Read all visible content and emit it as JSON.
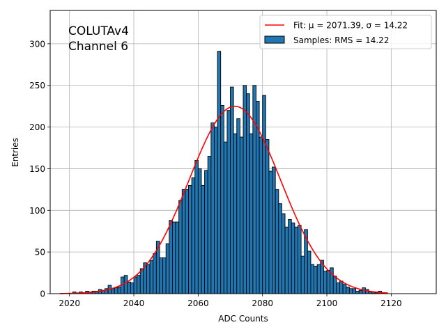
{
  "chart_data": {
    "type": "bar",
    "annotation_lines": [
      "COLUTAv4",
      "Channel 6"
    ],
    "xlabel": "ADC Counts",
    "ylabel": "Entries",
    "xlim": [
      2014,
      2134
    ],
    "ylim": [
      0,
      340
    ],
    "xticks": [
      2020,
      2040,
      2060,
      2080,
      2100,
      2120
    ],
    "yticks": [
      0,
      50,
      100,
      150,
      200,
      250,
      300
    ],
    "grid": true,
    "legend_position": "top-right",
    "bin_width": 1,
    "histogram": {
      "name": "Samples: RMS = 14.22",
      "color": "#1f77b4",
      "edgecolor": "#000000",
      "bin_starts": [
        2021,
        2022,
        2023,
        2024,
        2025,
        2026,
        2027,
        2028,
        2029,
        2030,
        2031,
        2032,
        2033,
        2034,
        2035,
        2036,
        2037,
        2038,
        2039,
        2040,
        2041,
        2042,
        2043,
        2044,
        2045,
        2046,
        2047,
        2048,
        2049,
        2050,
        2051,
        2052,
        2053,
        2054,
        2055,
        2056,
        2057,
        2058,
        2059,
        2060,
        2061,
        2062,
        2063,
        2064,
        2065,
        2066,
        2067,
        2068,
        2069,
        2070,
        2071,
        2072,
        2073,
        2074,
        2075,
        2076,
        2077,
        2078,
        2079,
        2080,
        2081,
        2082,
        2083,
        2084,
        2085,
        2086,
        2087,
        2088,
        2089,
        2090,
        2091,
        2092,
        2093,
        2094,
        2095,
        2096,
        2097,
        2098,
        2099,
        2100,
        2101,
        2102,
        2103,
        2104,
        2105,
        2106,
        2107,
        2108,
        2109,
        2110,
        2111,
        2112,
        2113,
        2114,
        2115,
        2116,
        2117
      ],
      "counts": [
        2,
        1,
        2,
        1,
        3,
        2,
        3,
        3,
        5,
        4,
        6,
        10,
        6,
        7,
        8,
        20,
        22,
        14,
        13,
        20,
        22,
        30,
        37,
        35,
        40,
        48,
        63,
        43,
        43,
        60,
        88,
        86,
        86,
        112,
        125,
        125,
        130,
        139,
        160,
        150,
        130,
        148,
        165,
        205,
        200,
        291,
        226,
        182,
        220,
        248,
        192,
        210,
        188,
        250,
        240,
        192,
        250,
        231,
        188,
        238,
        185,
        147,
        152,
        125,
        108,
        96,
        80,
        89,
        85,
        80,
        82,
        45,
        77,
        51,
        35,
        33,
        35,
        40,
        27,
        28,
        31,
        21,
        13,
        15,
        11,
        8,
        6,
        6,
        3,
        4,
        7,
        5,
        2,
        1,
        1,
        3,
        1
      ]
    },
    "fit": {
      "name": "Fit: μ = 2071.39, σ = 14.22",
      "color": "#ff0000",
      "mu": 2071.39,
      "sigma": 14.22,
      "amplitude": 225,
      "x_range": [
        2017,
        2119
      ]
    },
    "legend_entries": [
      "Fit: μ = 2071.39, σ = 14.22",
      "Samples: RMS = 14.22"
    ]
  }
}
